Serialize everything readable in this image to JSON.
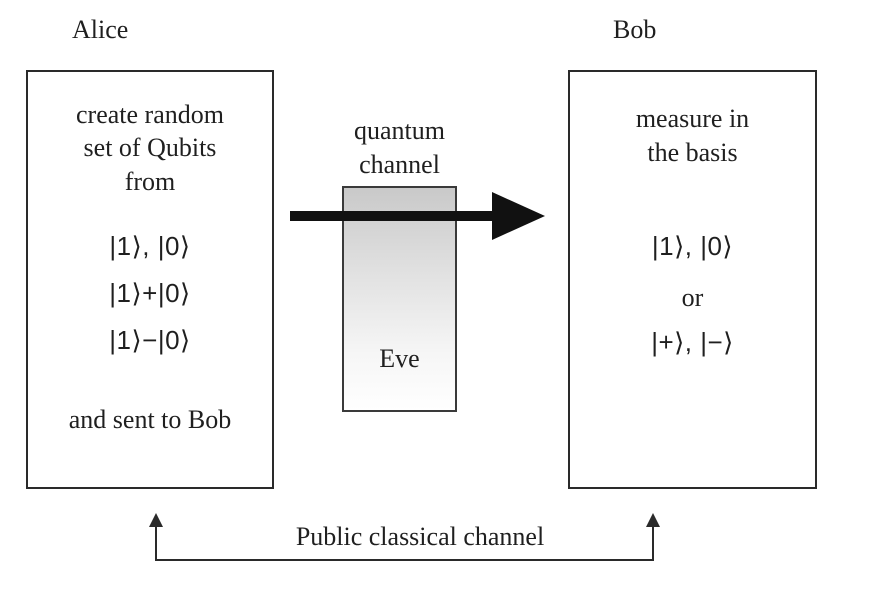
{
  "alice": {
    "title": "Alice",
    "line1": "create random",
    "line2": "set of Qubits",
    "line3": "from",
    "state1": "|1⟩, |0⟩",
    "state2": "|1⟩+|0⟩",
    "state3": "|1⟩−|0⟩",
    "footer": "and sent to Bob"
  },
  "bob": {
    "title": "Bob",
    "line1": "measure in",
    "line2": "the basis",
    "basis1": "|1⟩, |0⟩",
    "or": "or",
    "basis2": "|+⟩, |−⟩"
  },
  "channel": {
    "line1": "quantum",
    "line2": "channel",
    "eve": "Eve"
  },
  "public_channel": "Public classical channel"
}
